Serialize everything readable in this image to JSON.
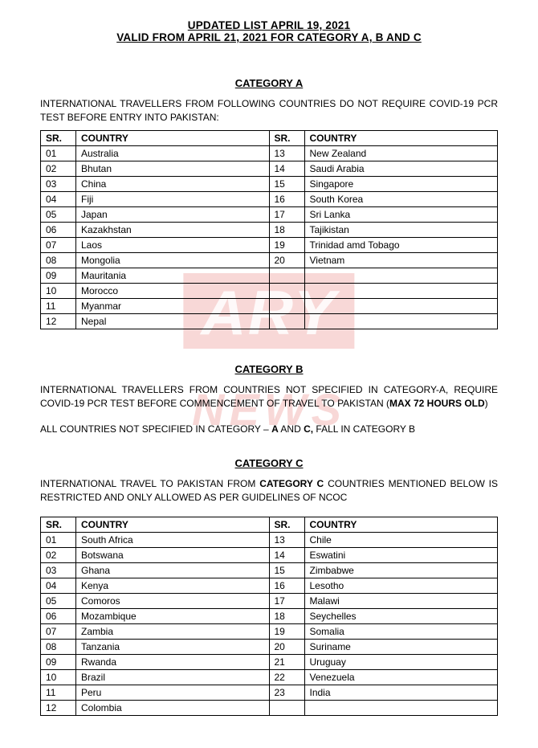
{
  "header": {
    "line1": "UPDATED LIST APRIL 19, 2021",
    "line2": "VALID FROM APRIL 21, 2021 FOR CATEGORY A, B AND C"
  },
  "watermark": {
    "top": "ARY",
    "bottom": "NEWS"
  },
  "catA": {
    "title": "CATEGORY A",
    "desc": "INTERNATIONAL TRAVELLERS FROM FOLLOWING COUNTRIES DO NOT REQUIRE COVID-19 PCR TEST BEFORE ENTRY INTO PAKISTAN:",
    "cols": {
      "sr": "SR.",
      "country": "COUNTRY"
    },
    "left": [
      {
        "sr": "01",
        "c": "Australia"
      },
      {
        "sr": "02",
        "c": "Bhutan"
      },
      {
        "sr": "03",
        "c": "China"
      },
      {
        "sr": "04",
        "c": "Fiji"
      },
      {
        "sr": "05",
        "c": "Japan"
      },
      {
        "sr": "06",
        "c": "Kazakhstan"
      },
      {
        "sr": "07",
        "c": "Laos"
      },
      {
        "sr": "08",
        "c": "Mongolia"
      },
      {
        "sr": "09",
        "c": "Mauritania"
      },
      {
        "sr": "10",
        "c": "Morocco"
      },
      {
        "sr": "11",
        "c": "Myanmar"
      },
      {
        "sr": "12",
        "c": "Nepal"
      }
    ],
    "right": [
      {
        "sr": "13",
        "c": "New Zealand"
      },
      {
        "sr": "14",
        "c": "Saudi Arabia"
      },
      {
        "sr": "15",
        "c": "Singapore"
      },
      {
        "sr": "16",
        "c": "South Korea"
      },
      {
        "sr": "17",
        "c": "Sri Lanka"
      },
      {
        "sr": "18",
        "c": "Tajikistan"
      },
      {
        "sr": "19",
        "c": "Trinidad amd Tobago"
      },
      {
        "sr": "20",
        "c": "Vietnam"
      },
      {
        "sr": "",
        "c": ""
      },
      {
        "sr": "",
        "c": ""
      },
      {
        "sr": "",
        "c": ""
      },
      {
        "sr": "",
        "c": ""
      }
    ]
  },
  "catB": {
    "title": "CATEGORY B",
    "p1a": "INTERNATIONAL TRAVELLERS FROM COUNTRIES NOT SPECIFIED IN CATEGORY-A, REQUIRE COVID-19 PCR TEST BEFORE COMMENCEMENT OF TRAVEL TO PAKISTAN (",
    "p1b": "MAX 72 HOURS OLD",
    "p1c": ")",
    "p2a": "ALL COUNTRIES NOT SPECIFIED IN CATEGORY – ",
    "p2b": "A",
    "p2c": " AND ",
    "p2d": "C,",
    "p2e": " FALL IN CATEGORY B"
  },
  "catC": {
    "title": "CATEGORY C",
    "d1": "INTERNATIONAL TRAVEL TO PAKISTAN FROM ",
    "d2": "CATEGORY C",
    "d3": " COUNTRIES MENTIONED BELOW IS RESTRICTED AND ONLY ALLOWED AS PER GUIDELINES OF NCOC",
    "cols": {
      "sr": "SR.",
      "country": "COUNTRY"
    },
    "left": [
      {
        "sr": "01",
        "c": "South Africa"
      },
      {
        "sr": "02",
        "c": "Botswana"
      },
      {
        "sr": "03",
        "c": "Ghana"
      },
      {
        "sr": "04",
        "c": "Kenya"
      },
      {
        "sr": "05",
        "c": "Comoros"
      },
      {
        "sr": "06",
        "c": "Mozambique"
      },
      {
        "sr": "07",
        "c": "Zambia"
      },
      {
        "sr": "08",
        "c": "Tanzania"
      },
      {
        "sr": "09",
        "c": "Rwanda"
      },
      {
        "sr": "10",
        "c": "Brazil"
      },
      {
        "sr": "11",
        "c": "Peru"
      },
      {
        "sr": "12",
        "c": "Colombia"
      }
    ],
    "right": [
      {
        "sr": "13",
        "c": "Chile"
      },
      {
        "sr": "14",
        "c": "Eswatini"
      },
      {
        "sr": "15",
        "c": "Zimbabwe"
      },
      {
        "sr": "16",
        "c": "Lesotho"
      },
      {
        "sr": "17",
        "c": "Malawi"
      },
      {
        "sr": "18",
        "c": "Seychelles"
      },
      {
        "sr": "19",
        "c": "Somalia"
      },
      {
        "sr": "20",
        "c": "Suriname"
      },
      {
        "sr": "21",
        "c": "Uruguay"
      },
      {
        "sr": "22",
        "c": "Venezuela"
      },
      {
        "sr": "23",
        "c": "India"
      },
      {
        "sr": "",
        "c": ""
      }
    ]
  }
}
